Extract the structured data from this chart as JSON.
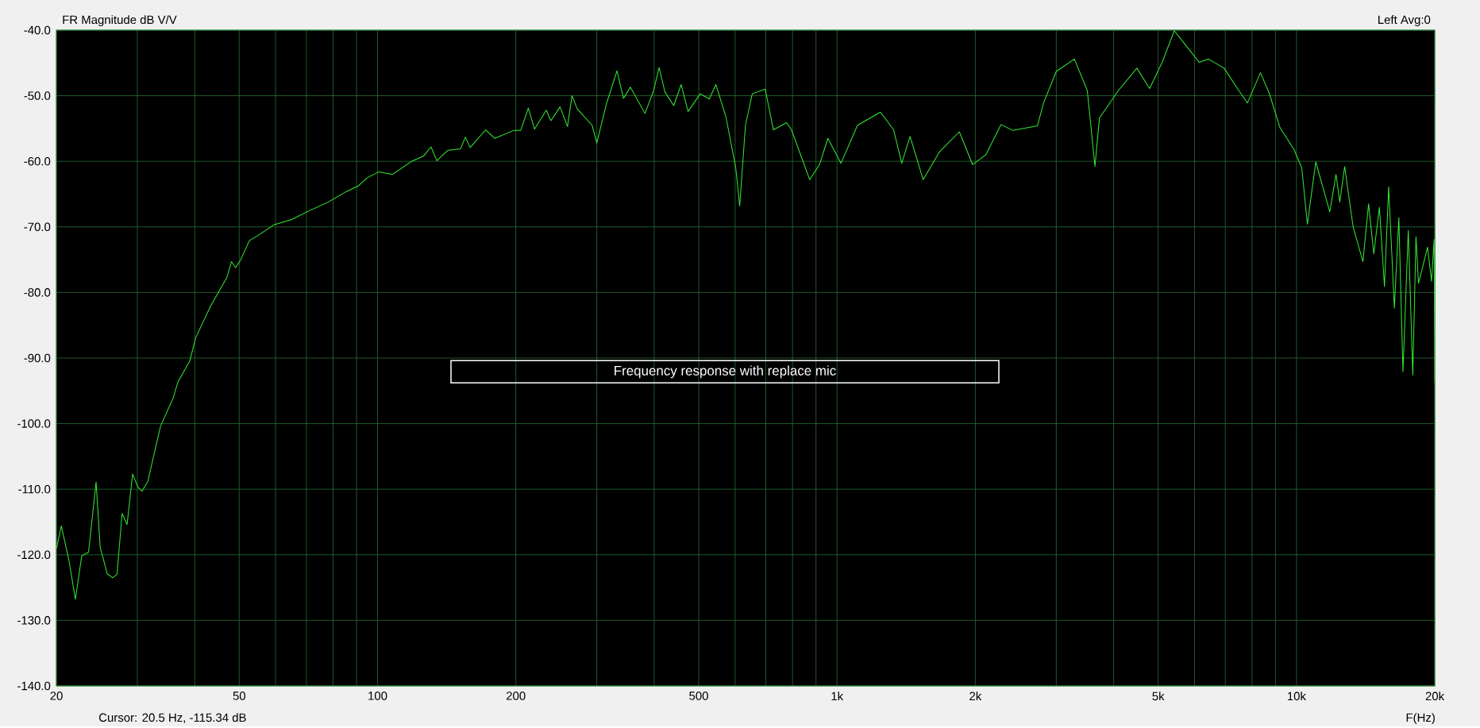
{
  "chart_data": {
    "type": "line",
    "xlabel": "F(Hz)",
    "ylabel": "FR Magnitude dB V/V",
    "annotations": [
      "Frequency response with replace mic",
      "Cursor:   20.5 Hz, -115.34 dB",
      "Left  Avg:0"
    ],
    "log": "x",
    "grid": true,
    "xlim": [
      20,
      20000
    ],
    "ylim": [
      -140,
      -40
    ],
    "xticks": [
      20,
      {
        "value": 30,
        "label": null
      },
      {
        "value": 40,
        "label": null
      },
      50,
      {
        "value": 60,
        "label": null
      },
      {
        "value": 70,
        "label": null
      },
      {
        "value": 80,
        "label": null
      },
      {
        "value": 90,
        "label": null
      },
      100,
      200,
      {
        "value": 300,
        "label": null
      },
      {
        "value": 400,
        "label": null
      },
      500,
      {
        "value": 600,
        "label": null
      },
      {
        "value": 700,
        "label": null
      },
      {
        "value": 800,
        "label": null
      },
      {
        "value": 900,
        "label": null
      },
      {
        "value": 1000,
        "label": "1k"
      },
      {
        "value": 2000,
        "label": "2k"
      },
      {
        "value": 3000,
        "label": null
      },
      {
        "value": 4000,
        "label": null
      },
      {
        "value": 5000,
        "label": "5k"
      },
      {
        "value": 6000,
        "label": null
      },
      {
        "value": 7000,
        "label": null
      },
      {
        "value": 8000,
        "label": null
      },
      {
        "value": 9000,
        "label": null
      },
      {
        "value": 10000,
        "label": "10k"
      },
      {
        "value": 20000,
        "label": "20k"
      }
    ],
    "yticks": [
      {
        "value": -40,
        "label": "-40.0"
      },
      {
        "value": -50,
        "label": "-50.0"
      },
      {
        "value": -60,
        "label": "-60.0"
      },
      {
        "value": -70,
        "label": "-70.0"
      },
      {
        "value": -80,
        "label": "-80.0"
      },
      {
        "value": -90,
        "label": "-90.0"
      },
      {
        "value": -100,
        "label": "-100.0"
      },
      {
        "value": -110,
        "label": "-110.0"
      },
      {
        "value": -120,
        "label": "-120.0"
      },
      {
        "value": -130,
        "label": "-130.0"
      },
      {
        "value": -140,
        "label": "-140.0"
      }
    ],
    "series": [
      {
        "color": "#33ee33",
        "x": [
          20,
          20.5,
          21.3,
          22,
          22.7,
          23.5,
          24.4,
          24.9,
          25.8,
          26.5,
          27.1,
          27.8,
          28.5,
          29.3,
          30.1,
          30.7,
          31.6,
          33.7,
          35.9,
          36.8,
          39,
          40.2,
          43.3,
          47,
          48.1,
          49.1,
          50.3,
          52.6,
          54.7,
          59.4,
          64.9,
          71.2,
          78.2,
          85.6,
          90.6,
          95,
          100.6,
          107.8,
          118.6,
          125.9,
          130.7,
          134.6,
          142.4,
          151.5,
          155.3,
          159,
          171.9,
          179.9,
          197.7,
          204.8,
          212.9,
          219.6,
          232.9,
          238.4,
          249.5,
          259,
          265,
          272,
          293,
          300,
          315,
          332,
          343,
          355,
          382,
          399,
          410,
          422,
          441,
          458,
          474,
          504,
          527,
          545,
          573,
          602,
          614,
          632,
          654,
          698,
          727,
          777,
          796,
          872,
          916,
          955,
          1020,
          1108,
          1243,
          1328,
          1383,
          1442,
          1540,
          1673,
          1846,
          1972,
          2108,
          2274,
          2415,
          2730,
          2815,
          3000,
          3285,
          3505,
          3643,
          3725,
          4096,
          4493,
          4789,
          5100,
          5420,
          5770,
          6140,
          6433,
          6957,
          7405,
          7820,
          8347,
          8720,
          9209,
          9876,
          10268,
          10560,
          11013,
          11815,
          12190,
          12420,
          12730,
          13280,
          13950,
          14350,
          14730,
          15150,
          15540,
          15870,
          16330,
          16700,
          17050,
          17510,
          17910,
          18200,
          18430,
          19290,
          19680,
          19930,
          20000
        ],
        "values": [
          -119.1,
          -115.6,
          -120.9,
          -126.8,
          -120.2,
          -119.6,
          -108.9,
          -118.8,
          -122.9,
          -123.5,
          -123,
          -113.7,
          -115.4,
          -107.7,
          -109.7,
          -110.3,
          -108.9,
          -100.4,
          -96.1,
          -93.6,
          -90.5,
          -86.9,
          -82.1,
          -77.7,
          -75.3,
          -76.2,
          -75.1,
          -72.1,
          -71.4,
          -69.7,
          -68.9,
          -67.5,
          -66.2,
          -64.6,
          -63.8,
          -62.5,
          -61.6,
          -62,
          -60,
          -59.2,
          -57.8,
          -59.9,
          -58.3,
          -58.1,
          -56.3,
          -57.9,
          -55.2,
          -56.5,
          -55.3,
          -55.3,
          -51.9,
          -55.1,
          -52.2,
          -53.8,
          -51.7,
          -54.7,
          -50,
          -52,
          -54.5,
          -57.2,
          -51.2,
          -46.2,
          -50.4,
          -48.7,
          -52.7,
          -49.2,
          -45.7,
          -49.4,
          -51.5,
          -48.3,
          -52.4,
          -49.7,
          -50.5,
          -48.3,
          -53.2,
          -61,
          -66.8,
          -54.5,
          -49.7,
          -49,
          -55.2,
          -54.1,
          -55.2,
          -62.8,
          -60.5,
          -56.5,
          -60.3,
          -54.5,
          -52.5,
          -55.2,
          -60.3,
          -56.2,
          -62.8,
          -58.5,
          -55.5,
          -60.5,
          -59,
          -54.4,
          -55.3,
          -54.6,
          -51.1,
          -46.3,
          -44.4,
          -49.2,
          -60.8,
          -53.4,
          -49.2,
          -45.8,
          -48.9,
          -44.9,
          -40.1,
          -42.5,
          -44.9,
          -44.4,
          -45.8,
          -48.7,
          -51.1,
          -46.5,
          -49.6,
          -54.9,
          -58.2,
          -61,
          -69.6,
          -60.1,
          -67.7,
          -62,
          -66.2,
          -60.8,
          -70,
          -75.3,
          -66.5,
          -74.1,
          -67,
          -79.1,
          -63.9,
          -82.4,
          -68.6,
          -92.1,
          -70.5,
          -92.6,
          -71.5,
          -78.6,
          -73.1,
          -78.3,
          -71.9,
          -93.8
        ]
      }
    ]
  }
}
